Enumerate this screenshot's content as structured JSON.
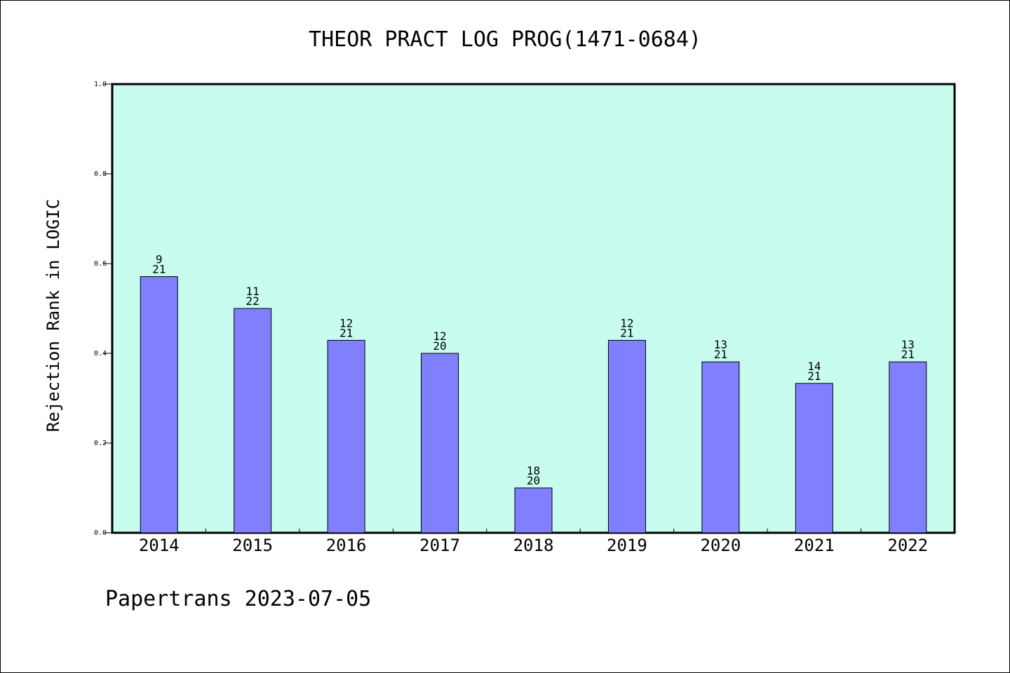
{
  "chart_data": {
    "type": "bar",
    "title": "THEOR PRACT LOG PROG(1471-0684)",
    "xlabel": "",
    "ylabel": "Rejection Rank in LOGIC",
    "ylim": [
      0,
      1.0
    ],
    "yticks": [
      "0.0",
      "0.2",
      "0.4",
      "0.6",
      "0.8",
      "1.0"
    ],
    "categories": [
      "2014",
      "2015",
      "2016",
      "2017",
      "2018",
      "2019",
      "2020",
      "2021",
      "2022"
    ],
    "values": [
      0.571,
      0.5,
      0.429,
      0.4,
      0.1,
      0.429,
      0.381,
      0.333,
      0.381
    ],
    "label_numerators": [
      "9",
      "11",
      "12",
      "12",
      "18",
      "12",
      "13",
      "14",
      "13"
    ],
    "label_denominators": [
      "21",
      "22",
      "21",
      "20",
      "20",
      "21",
      "21",
      "21",
      "21"
    ],
    "grid": false,
    "colors": {
      "plot_background": "#c8fcee",
      "bar_fill": "#8080ff",
      "bar_stroke": "#000000"
    }
  },
  "footer": "Papertrans 2023-07-05"
}
